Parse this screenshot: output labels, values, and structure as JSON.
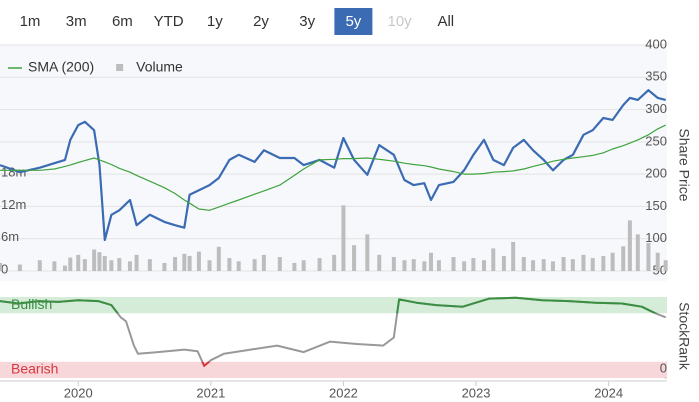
{
  "range_buttons": {
    "items": [
      "1m",
      "3m",
      "6m",
      "YTD",
      "1y",
      "2y",
      "3y",
      "5y",
      "10y",
      "All"
    ],
    "selected": "5y",
    "disabled": [
      "10y"
    ]
  },
  "chart_data": [
    {
      "type": "line",
      "y_label": "Share Price",
      "grid": true,
      "xlim": [
        2019.41,
        2024.44
      ],
      "x": [
        2019.41,
        2019.56,
        2019.71,
        2019.82,
        2019.9,
        2019.94,
        2020.0,
        2020.05,
        2020.12,
        2020.16,
        2020.2,
        2020.25,
        2020.31,
        2020.39,
        2020.44,
        2020.54,
        2020.65,
        2020.73,
        2020.8,
        2020.84,
        2020.91,
        2020.99,
        2021.06,
        2021.14,
        2021.21,
        2021.33,
        2021.4,
        2021.52,
        2021.63,
        2021.7,
        2021.82,
        2021.93,
        2022.0,
        2022.08,
        2022.18,
        2022.27,
        2022.38,
        2022.46,
        2022.53,
        2022.61,
        2022.66,
        2022.72,
        2022.83,
        2022.91,
        2022.98,
        2023.06,
        2023.13,
        2023.21,
        2023.28,
        2023.36,
        2023.43,
        2023.51,
        2023.58,
        2023.66,
        2023.73,
        2023.81,
        2023.88,
        2023.96,
        2024.03,
        2024.11,
        2024.16,
        2024.22,
        2024.3,
        2024.37,
        2024.43
      ],
      "ylim": [
        50,
        400
      ],
      "yticks": [
        50,
        100,
        150,
        200,
        250,
        300,
        350,
        400
      ],
      "y2lim": [
        0,
        42000000
      ],
      "y2ticks": [
        0,
        {
          "value": 6000000,
          "label": "6m"
        },
        {
          "value": 12000000,
          "label": "12m"
        },
        {
          "value": 18000000,
          "label": "18m"
        }
      ],
      "series": [
        {
          "color": "#3a6bb3",
          "values": [
            214,
            203,
            210,
            217,
            222,
            253,
            276,
            281,
            268,
            214,
            98,
            137,
            144,
            160,
            121,
            137,
            126,
            121,
            117,
            168,
            175,
            183,
            194,
            222,
            230,
            219,
            237,
            225,
            225,
            214,
            222,
            210,
            256,
            222,
            199,
            245,
            230,
            191,
            183,
            186,
            160,
            183,
            188,
            206,
            230,
            253,
            222,
            214,
            241,
            253,
            237,
            222,
            206,
            222,
            230,
            261,
            268,
            287,
            284,
            307,
            318,
            315,
            330,
            318,
            315
          ]
        },
        {
          "name": "SMA (200)",
          "color": "#3fa33f",
          "values": [
            206,
            206,
            206,
            208,
            212,
            214,
            218,
            221,
            225,
            222,
            219,
            215,
            209,
            203,
            198,
            189,
            179,
            170,
            160,
            155,
            146,
            144,
            149,
            155,
            160,
            169,
            174,
            183,
            198,
            208,
            222,
            223,
            224,
            224,
            225,
            223,
            220,
            217,
            215,
            213,
            211,
            208,
            204,
            200,
            200,
            201,
            203,
            204,
            205,
            208,
            212,
            216,
            220,
            223,
            225,
            227,
            229,
            233,
            239,
            244,
            248,
            253,
            261,
            270,
            276
          ]
        },
        {
          "name": "Volume",
          "color": "#bdbdbd",
          "type": "bar",
          "axis": "y2",
          "values": [
            1500000,
            1200000,
            2000000,
            1800000,
            1000000,
            2500000,
            3000000,
            2200000,
            4000000,
            3500000,
            2800000,
            2000000,
            2400000,
            1800000,
            3000000,
            2200000,
            1500000,
            2600000,
            3200000,
            2800000,
            3600000,
            2000000,
            4500000,
            2400000,
            1800000,
            2200000,
            3000000,
            2600000,
            1500000,
            2000000,
            2400000,
            3000000,
            12200000,
            4800000,
            6800000,
            3000000,
            2600000,
            2000000,
            2200000,
            1800000,
            3400000,
            2000000,
            2600000,
            1800000,
            2400000,
            2000000,
            4200000,
            2800000,
            5400000,
            2600000,
            2000000,
            2200000,
            1800000,
            2600000,
            2200000,
            3000000,
            2400000,
            2800000,
            3400000,
            4600000,
            9400000,
            6800000,
            5200000,
            3400000,
            2000000
          ]
        }
      ]
    },
    {
      "type": "line",
      "y_label": "StockRank",
      "xlim": [
        2019.41,
        2024.44
      ],
      "xticks": [
        2020,
        2021,
        2022,
        2023,
        2024
      ],
      "ylim": [
        0,
        100
      ],
      "yticks": [
        0
      ],
      "bands": [
        {
          "label": "Bullish",
          "from": 80,
          "to": 100,
          "color": "#d5ecd9",
          "line": "#3a8f43"
        },
        {
          "label": "Bearish",
          "from": 0,
          "to": 20,
          "color": "#f8d7da",
          "line": "#d9363e"
        }
      ],
      "line_color": "#999999",
      "x": [
        2019.41,
        2019.55,
        2019.7,
        2019.85,
        2020.0,
        2020.15,
        2020.25,
        2020.32,
        2020.36,
        2020.42,
        2020.45,
        2020.6,
        2020.8,
        2020.9,
        2020.95,
        2021.0,
        2021.1,
        2021.3,
        2021.5,
        2021.7,
        2021.9,
        2022.1,
        2022.3,
        2022.38,
        2022.42,
        2022.55,
        2022.7,
        2022.9,
        2023.1,
        2023.3,
        2023.5,
        2023.7,
        2023.9,
        2024.1,
        2024.25,
        2024.35,
        2024.43
      ],
      "values": [
        95,
        92,
        95,
        94,
        96,
        95,
        90,
        75,
        70,
        40,
        30,
        32,
        35,
        33,
        15,
        22,
        30,
        35,
        40,
        32,
        45,
        42,
        40,
        50,
        97,
        93,
        90,
        88,
        98,
        99,
        96,
        95,
        93,
        92,
        88,
        80,
        75
      ]
    }
  ]
}
